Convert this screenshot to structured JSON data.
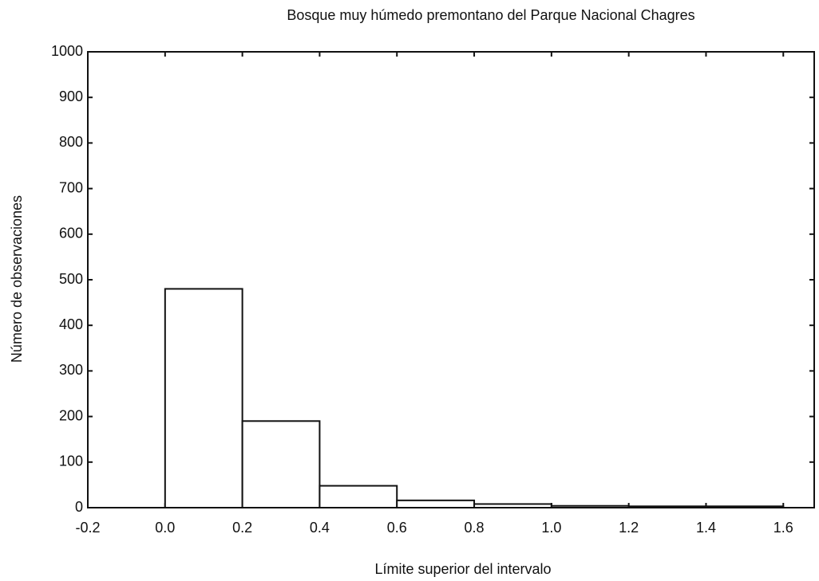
{
  "chart_data": {
    "type": "histogram",
    "title": "Bosque muy húmedo premontano del Parque Nacional Chagres",
    "x_label": "Límite superior del intervalo",
    "y_label": "Número de observaciones",
    "bins": [
      0,
      0.2,
      0.4,
      0.6,
      0.8,
      1.0,
      1.2,
      1.4,
      1.6
    ],
    "values": [
      480,
      190,
      48,
      16,
      8,
      4,
      3,
      3
    ],
    "color": "#ffffff",
    "xlim": [
      -0.2,
      1.68
    ],
    "ylim": [
      0,
      1000
    ],
    "xticks": [
      -0.2,
      {
        "value": 0,
        "label": "0.0"
      },
      0.2,
      0.4,
      0.6,
      0.8,
      {
        "value": 1,
        "label": "1.0"
      },
      1.2,
      1.4,
      1.6
    ],
    "yticks": [
      0,
      100,
      200,
      300,
      400,
      500,
      600,
      700,
      800,
      900,
      1000
    ]
  }
}
